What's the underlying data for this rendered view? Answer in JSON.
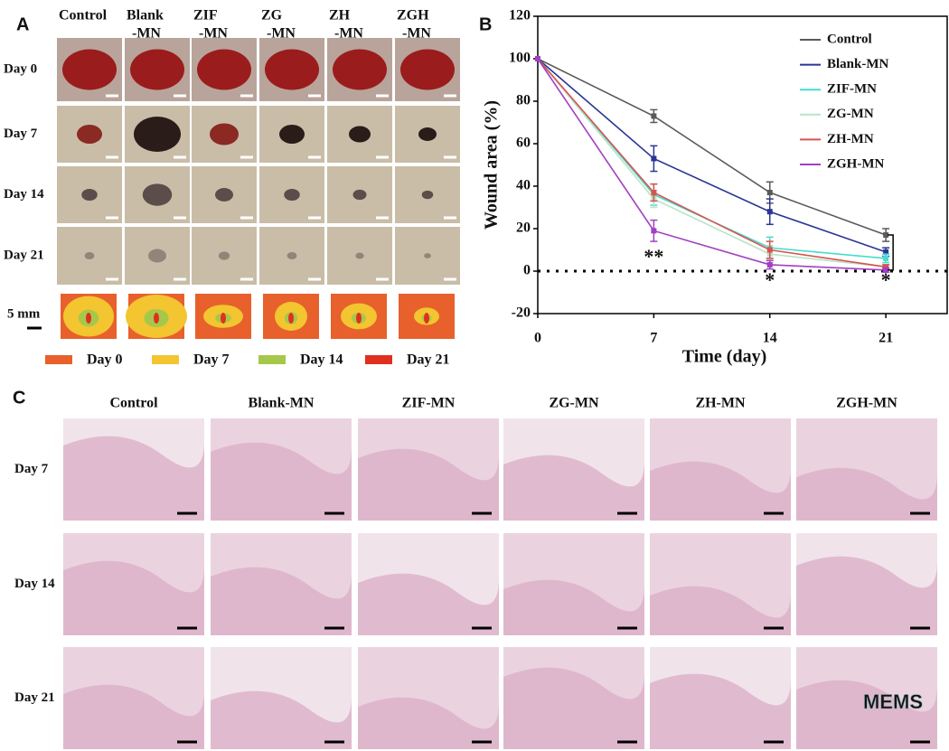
{
  "panel_a": {
    "label": "A",
    "columns": [
      [
        "Control"
      ],
      [
        "Blank",
        "-MN"
      ],
      [
        "ZIF",
        "-MN"
      ],
      [
        "ZG",
        "-MN"
      ],
      [
        "ZH",
        "-MN"
      ],
      [
        "ZGH",
        "-MN"
      ]
    ],
    "rows": [
      "Day 0",
      "Day 7",
      "Day 14",
      "Day 21"
    ],
    "scale_label": "5 mm",
    "legend": [
      {
        "label": "Day 0",
        "color": "#e8602c"
      },
      {
        "label": "Day 7",
        "color": "#f2c531"
      },
      {
        "label": "Day 14",
        "color": "#a6c84a"
      },
      {
        "label": "Day 21",
        "color": "#e0301e"
      }
    ]
  },
  "chart_data": {
    "type": "line",
    "label": "B",
    "x": [
      0,
      7,
      14,
      21
    ],
    "xlim": [
      0,
      24.7
    ],
    "xticks": [
      0,
      7,
      14,
      21
    ],
    "ylim": [
      -20,
      120
    ],
    "yticks": [
      -20,
      0,
      20,
      40,
      60,
      80,
      100,
      120
    ],
    "xlabel": "Time  (day)",
    "ylabel": "Wound area  (%)",
    "series": [
      {
        "name": "Control",
        "color": "#5a5a5a",
        "values": [
          100,
          73,
          37,
          17
        ],
        "errors": [
          0,
          3,
          5,
          3
        ]
      },
      {
        "name": "Blank-MN",
        "color": "#2a3595",
        "values": [
          100,
          53,
          28,
          9
        ],
        "errors": [
          0,
          6,
          6,
          2
        ]
      },
      {
        "name": "ZIF-MN",
        "color": "#44ddd0",
        "values": [
          100,
          36,
          11,
          6
        ],
        "errors": [
          0,
          5,
          5,
          2
        ]
      },
      {
        "name": "ZG-MN",
        "color": "#b9e3c6",
        "values": [
          100,
          34,
          8,
          2
        ],
        "errors": [
          0,
          4,
          4,
          1
        ]
      },
      {
        "name": "ZH-MN",
        "color": "#d9534f",
        "values": [
          100,
          37,
          10,
          2
        ],
        "errors": [
          0,
          4,
          4,
          1
        ]
      },
      {
        "name": "ZGH-MN",
        "color": "#a23fc2",
        "values": [
          100,
          19,
          3,
          0.5
        ],
        "errors": [
          0,
          5,
          2,
          1
        ]
      }
    ],
    "annotations": [
      {
        "text": "**",
        "x": 7,
        "y": 6
      },
      {
        "text": "*",
        "x": 14,
        "y": -5
      },
      {
        "text": "*",
        "x": 21,
        "y": -5
      }
    ]
  },
  "panel_c": {
    "label": "C",
    "columns": [
      "Control",
      "Blank-MN",
      "ZIF-MN",
      "ZG-MN",
      "ZH-MN",
      "ZGH-MN"
    ],
    "rows": [
      "Day 7",
      "Day 14",
      "Day 21"
    ],
    "watermark": "MEMS"
  }
}
